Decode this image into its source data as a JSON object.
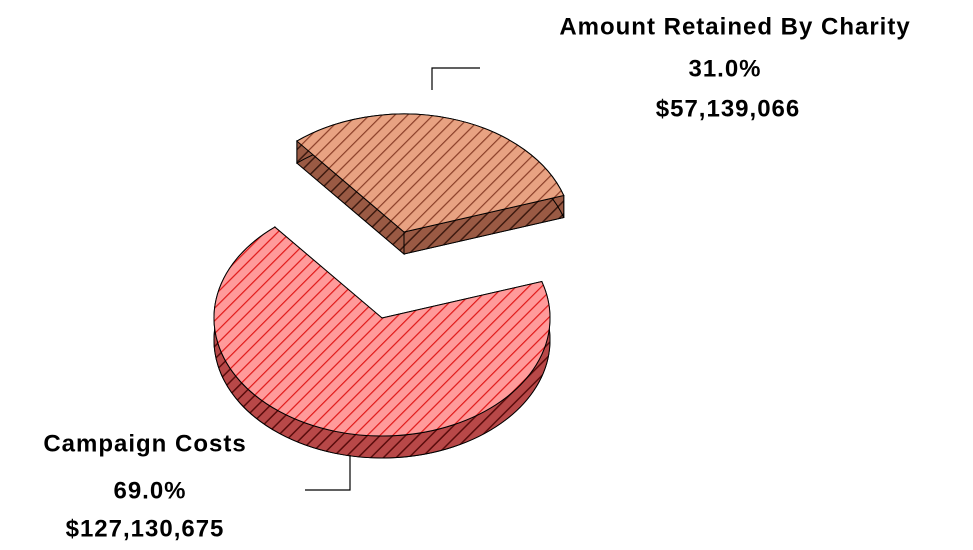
{
  "chart_data": {
    "type": "pie",
    "categories": [
      "Campaign Costs",
      "Amount Retained By Charity"
    ],
    "values": [
      69.0,
      31.0
    ],
    "value_labels": [
      "69.0%",
      "31.0%"
    ],
    "amounts": [
      127130675,
      57139066
    ],
    "amount_labels": [
      "$127,130,675",
      "$57,139,066"
    ],
    "colors": [
      "#ff9a9a",
      "#e39a7c"
    ],
    "explode": [
      false,
      true
    ]
  }
}
